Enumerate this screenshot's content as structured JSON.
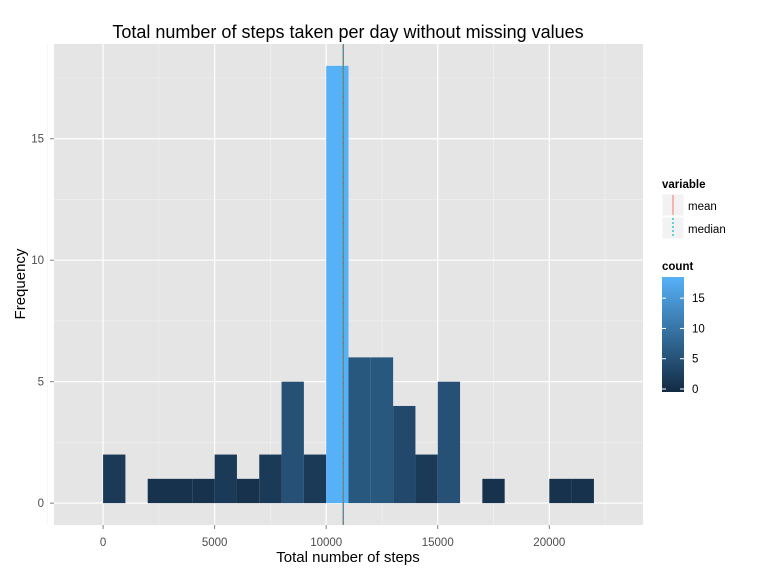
{
  "chart_data": {
    "type": "bar",
    "title": "Total number of steps taken per day without missing values",
    "xlabel": "Total number of steps",
    "ylabel": "Frequency",
    "bin_width": 1000,
    "bins": [
      {
        "start": 0,
        "count": 2
      },
      {
        "start": 1000,
        "count": 0
      },
      {
        "start": 2000,
        "count": 1
      },
      {
        "start": 3000,
        "count": 1
      },
      {
        "start": 4000,
        "count": 1
      },
      {
        "start": 5000,
        "count": 2
      },
      {
        "start": 6000,
        "count": 1
      },
      {
        "start": 7000,
        "count": 2
      },
      {
        "start": 8000,
        "count": 5
      },
      {
        "start": 9000,
        "count": 2
      },
      {
        "start": 10000,
        "count": 18
      },
      {
        "start": 11000,
        "count": 6
      },
      {
        "start": 12000,
        "count": 6
      },
      {
        "start": 13000,
        "count": 4
      },
      {
        "start": 14000,
        "count": 2
      },
      {
        "start": 15000,
        "count": 5
      },
      {
        "start": 16000,
        "count": 0
      },
      {
        "start": 17000,
        "count": 1
      },
      {
        "start": 18000,
        "count": 0
      },
      {
        "start": 19000,
        "count": 0
      },
      {
        "start": 20000,
        "count": 1
      },
      {
        "start": 21000,
        "count": 1
      }
    ],
    "xlim": [
      -2200,
      24200
    ],
    "ylim": [
      -0.9,
      18.9
    ],
    "x_ticks": [
      0,
      5000,
      10000,
      15000,
      20000
    ],
    "x_tick_labels": [
      "0",
      "5000",
      "10000",
      "15000",
      "20000"
    ],
    "y_ticks": [
      0,
      5,
      10,
      15
    ],
    "y_tick_labels": [
      "0",
      "5",
      "10",
      "15"
    ],
    "reference_lines": [
      {
        "name": "mean",
        "value": 10766,
        "color": "#f8766d",
        "linetype": "solid"
      },
      {
        "name": "median",
        "value": 10766,
        "color": "#00bfc4",
        "linetype": "dotted"
      }
    ],
    "legend_variable": {
      "title": "variable",
      "entries": [
        "mean",
        "median"
      ]
    },
    "legend_count": {
      "title": "count",
      "ticks": [
        0,
        5,
        10,
        15
      ],
      "tick_labels": [
        "0",
        "5",
        "10",
        "15"
      ],
      "min": 0,
      "max": 18,
      "low_color": "#132b43",
      "high_color": "#56b1f7"
    },
    "grid": true,
    "panel_background": "#e5e5e5",
    "grid_color": "#ffffff",
    "legend_position": "right"
  }
}
